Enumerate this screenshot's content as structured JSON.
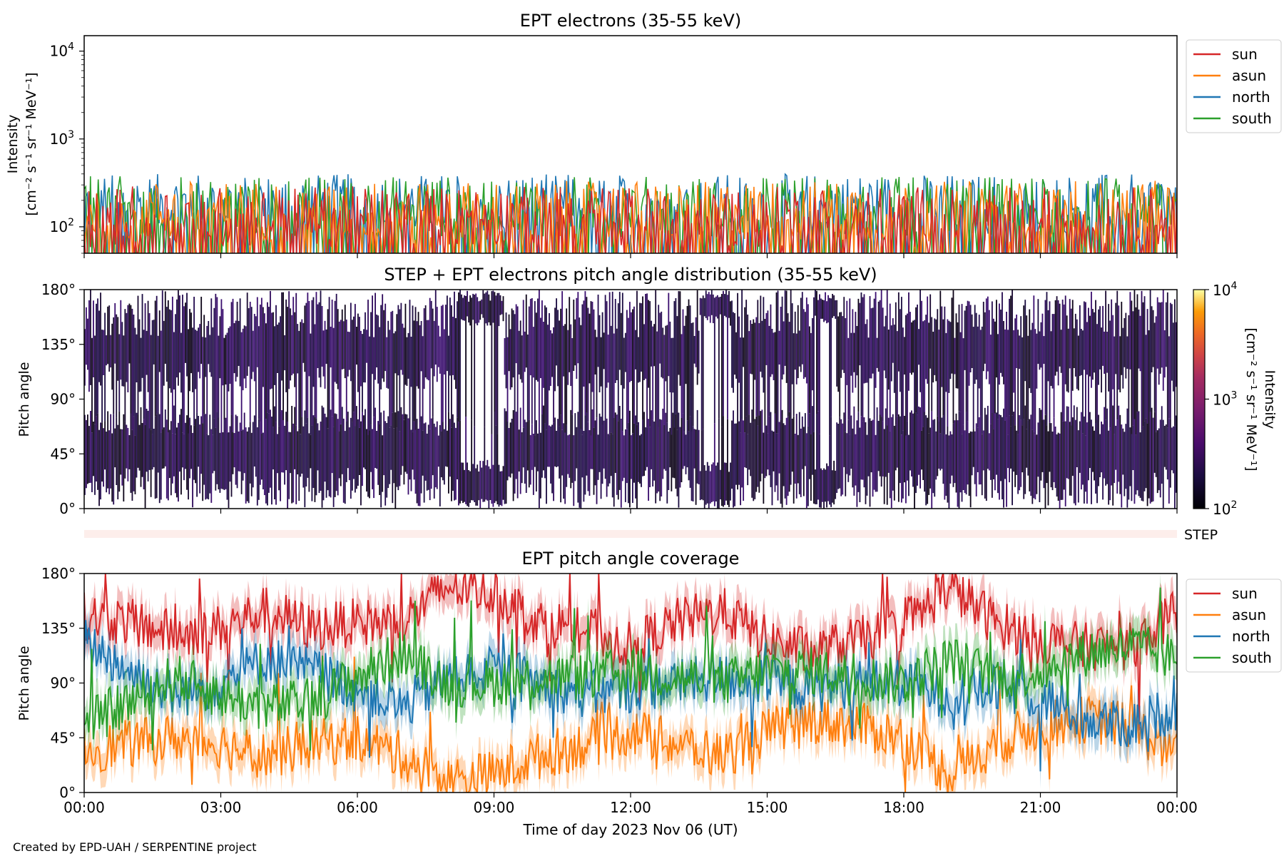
{
  "figure": {
    "footer": "Created by EPD-UAH / SERPENTINE project",
    "xlabel": "Time of day 2023 Nov 06 (UT)",
    "x_ticks": [
      "00:00",
      "03:00",
      "06:00",
      "09:00",
      "12:00",
      "15:00",
      "18:00",
      "21:00",
      "00:00"
    ],
    "colors": {
      "sun": "#d62728",
      "asun": "#ff7f0e",
      "north": "#1f77b4",
      "south": "#2ca02c"
    }
  },
  "chart_data": [
    {
      "type": "line",
      "title": "EPT electrons (35-55 keV)",
      "ylabel_line1": "Intensity",
      "ylabel_line2": "[cm⁻² s⁻¹ sr⁻¹ MeV⁻¹]",
      "yscale": "log",
      "ylim": [
        50,
        15000
      ],
      "y_ticks": [
        {
          "base": "10",
          "exp": "2"
        },
        {
          "base": "10",
          "exp": "3"
        },
        {
          "base": "10",
          "exp": "4"
        }
      ],
      "x_range_hours": [
        0,
        24
      ],
      "legend": {
        "placement": "outside-right-top",
        "entries": [
          "sun",
          "asun",
          "north",
          "south"
        ]
      },
      "series": [
        {
          "name": "north",
          "color": "#1f77b4",
          "approx_range": [
            50,
            560
          ],
          "typical": 180
        },
        {
          "name": "south",
          "color": "#2ca02c",
          "approx_range": [
            50,
            700
          ],
          "typical": 170
        },
        {
          "name": "asun",
          "color": "#ff7f0e",
          "approx_range": [
            50,
            540
          ],
          "typical": 150
        },
        {
          "name": "sun",
          "color": "#d62728",
          "approx_range": [
            50,
            480
          ],
          "typical": 130
        }
      ]
    },
    {
      "type": "heatmap",
      "title": "STEP + EPT electrons pitch angle distribution (35-55 keV)",
      "ylabel": "Pitch angle",
      "y_ticks": [
        "0°",
        "45°",
        "90°",
        "135°",
        "180°"
      ],
      "ylim": [
        0,
        180
      ],
      "x_range_hours": [
        0,
        24
      ],
      "colorbar": {
        "label_line1": "Intensity",
        "label_line2": "[cm⁻² s⁻¹ sr⁻¹ MeV⁻¹]",
        "scale": "log",
        "range": [
          100,
          10000
        ],
        "ticks": [
          {
            "base": "10",
            "exp": "2"
          },
          {
            "base": "10",
            "exp": "3"
          },
          {
            "base": "10",
            "exp": "4"
          }
        ],
        "colormap": "inferno"
      },
      "step_strip_label": "STEP"
    },
    {
      "type": "line",
      "title": "EPT pitch angle coverage",
      "ylabel": "Pitch angle",
      "y_ticks": [
        "0°",
        "45°",
        "90°",
        "135°",
        "180°"
      ],
      "ylim": [
        0,
        180
      ],
      "x_range_hours": [
        0,
        24
      ],
      "legend": {
        "placement": "outside-right-top",
        "entries": [
          "sun",
          "asun",
          "north",
          "south"
        ]
      },
      "series": [
        {
          "name": "sun",
          "color": "#d62728",
          "keys_hours": [
            0,
            1,
            2,
            3,
            4,
            5,
            6,
            7,
            8,
            9,
            10,
            11,
            12,
            13,
            14,
            15,
            16,
            17,
            18,
            19,
            20,
            21,
            22,
            23,
            24
          ],
          "keys_deg": [
            145,
            140,
            130,
            135,
            150,
            135,
            140,
            140,
            170,
            165,
            140,
            135,
            120,
            140,
            150,
            125,
            115,
            125,
            135,
            170,
            140,
            125,
            120,
            120,
            150
          ]
        },
        {
          "name": "asun",
          "color": "#ff7f0e",
          "keys_hours": [
            0,
            1,
            2,
            3,
            4,
            5,
            6,
            7,
            8,
            9,
            10,
            11,
            12,
            13,
            14,
            15,
            16,
            17,
            18,
            19,
            20,
            21,
            22,
            23,
            24
          ],
          "keys_deg": [
            35,
            40,
            45,
            40,
            30,
            40,
            45,
            30,
            10,
            15,
            30,
            40,
            50,
            40,
            30,
            50,
            60,
            55,
            45,
            15,
            40,
            55,
            60,
            55,
            30
          ]
        },
        {
          "name": "north",
          "color": "#1f77b4",
          "keys_hours": [
            0,
            1,
            2,
            3,
            4,
            5,
            6,
            7,
            8,
            9,
            10,
            11,
            12,
            13,
            14,
            15,
            16,
            17,
            18,
            19,
            20,
            21,
            22,
            23,
            24
          ],
          "keys_deg": [
            125,
            100,
            80,
            90,
            110,
            100,
            85,
            70,
            95,
            100,
            90,
            80,
            85,
            90,
            95,
            90,
            85,
            90,
            90,
            80,
            85,
            80,
            60,
            55,
            70
          ]
        },
        {
          "name": "south",
          "color": "#2ca02c",
          "keys_hours": [
            0,
            1,
            2,
            3,
            4,
            5,
            6,
            7,
            8,
            9,
            10,
            11,
            12,
            13,
            14,
            15,
            16,
            17,
            18,
            19,
            20,
            21,
            22,
            23,
            24
          ],
          "keys_deg": [
            55,
            75,
            95,
            80,
            70,
            75,
            95,
            115,
            90,
            90,
            95,
            95,
            100,
            95,
            90,
            100,
            100,
            95,
            90,
            110,
            95,
            100,
            115,
            120,
            110
          ]
        }
      ]
    }
  ]
}
